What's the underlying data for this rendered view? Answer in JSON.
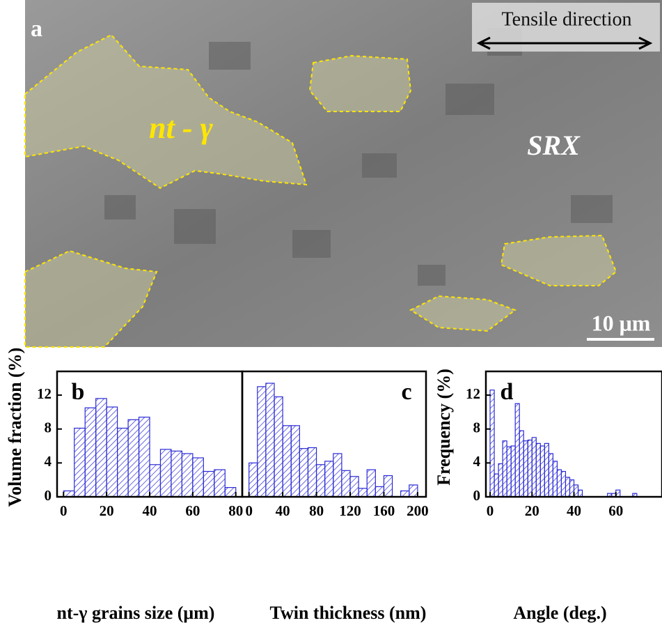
{
  "micrograph": {
    "panel_label": "a",
    "direction_label": "Tensile direction",
    "grain_label": "nt - γ",
    "region_label": "SRX",
    "scale_label": "10 μm"
  },
  "chart_data": [
    {
      "type": "histogram",
      "panel_label": "b",
      "x_label": "nt-γ grains size (μm)",
      "y_label": "Volume fraction (%)",
      "color": "#2a2ad6",
      "bins": [
        0,
        5,
        10,
        15,
        20,
        25,
        30,
        35,
        40,
        45,
        50,
        55,
        60,
        65,
        70,
        75,
        80
      ],
      "values": [
        0.7,
        8.1,
        10.5,
        11.6,
        10.6,
        8.1,
        9.1,
        9.4,
        3.8,
        5.6,
        5.4,
        5.1,
        4.6,
        3.0,
        3.2,
        1.1
      ],
      "xlim": [
        -3,
        83
      ],
      "xticks": [
        0,
        20,
        40,
        60,
        80
      ],
      "ylim": [
        0,
        14.8
      ],
      "yticks": [
        0,
        4,
        8,
        12
      ]
    },
    {
      "type": "histogram",
      "panel_label": "c",
      "x_label": "Twin thickness (nm)",
      "color": "#2a2ad6",
      "bins": [
        0,
        10,
        20,
        30,
        40,
        50,
        60,
        70,
        80,
        90,
        100,
        110,
        120,
        130,
        140,
        150,
        160,
        170,
        180,
        190,
        200
      ],
      "values": [
        4.0,
        13.0,
        13.4,
        11.8,
        8.4,
        8.4,
        5.7,
        5.8,
        3.8,
        4.2,
        5.1,
        3.1,
        2.4,
        1.0,
        3.2,
        1.2,
        2.5,
        0,
        0.7,
        1.4
      ],
      "xlim": [
        -8,
        210
      ],
      "xticks": [
        0,
        40,
        80,
        120,
        160,
        200
      ],
      "ylim": [
        0,
        14.8
      ]
    },
    {
      "type": "histogram",
      "panel_label": "d",
      "x_label": "Angle (deg.)",
      "y_label": "Frequency (%)",
      "color": "#2a2ad6",
      "bins": [
        0,
        2,
        4,
        6,
        8,
        10,
        12,
        14,
        16,
        18,
        20,
        22,
        24,
        26,
        28,
        30,
        32,
        34,
        36,
        38,
        40,
        42,
        44,
        46,
        48,
        50,
        52,
        54,
        56,
        58,
        60,
        62,
        64,
        66,
        68,
        70
      ],
      "values": [
        12.6,
        2.7,
        3.9,
        6.6,
        5.9,
        6.0,
        11.0,
        7.8,
        6.6,
        6.7,
        7.0,
        6.3,
        6.0,
        6.3,
        5.1,
        4.2,
        3.2,
        3.0,
        2.3,
        2.0,
        1.4,
        0.8,
        0,
        0,
        0,
        0,
        0,
        0,
        0.4,
        0.4,
        0.8,
        0,
        0,
        0,
        0.4
      ],
      "xlim": [
        -2,
        82
      ],
      "xticks": [
        0,
        20,
        40,
        60
      ],
      "ylim": [
        0,
        14.8
      ],
      "yticks": [
        0,
        4,
        8,
        12
      ]
    }
  ]
}
